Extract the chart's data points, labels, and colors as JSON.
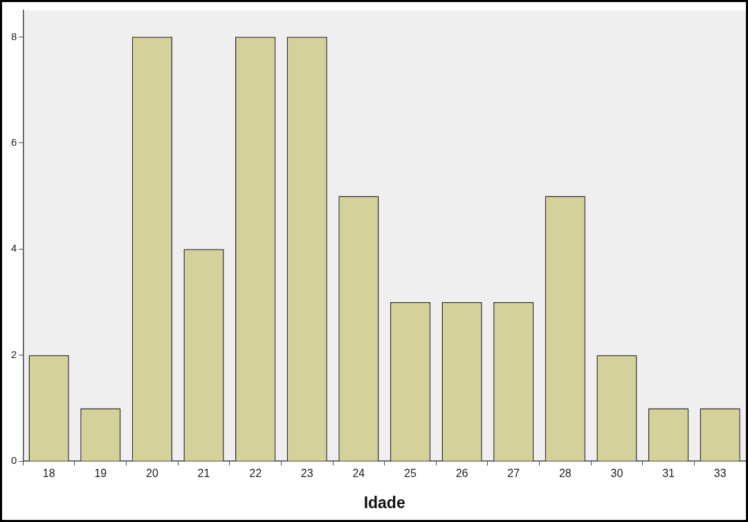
{
  "chart_data": {
    "type": "bar",
    "xlabel": "Idade",
    "categories": [
      "18",
      "19",
      "20",
      "21",
      "22",
      "23",
      "24",
      "25",
      "26",
      "27",
      "28",
      "30",
      "31",
      "33"
    ],
    "values": [
      2,
      1,
      8,
      4,
      8,
      8,
      5,
      3,
      3,
      3,
      5,
      2,
      1,
      1
    ],
    "color": "#d4d19a",
    "ylim": [
      0,
      8.5
    ],
    "yticks": [
      0,
      2,
      4,
      6,
      8
    ]
  }
}
